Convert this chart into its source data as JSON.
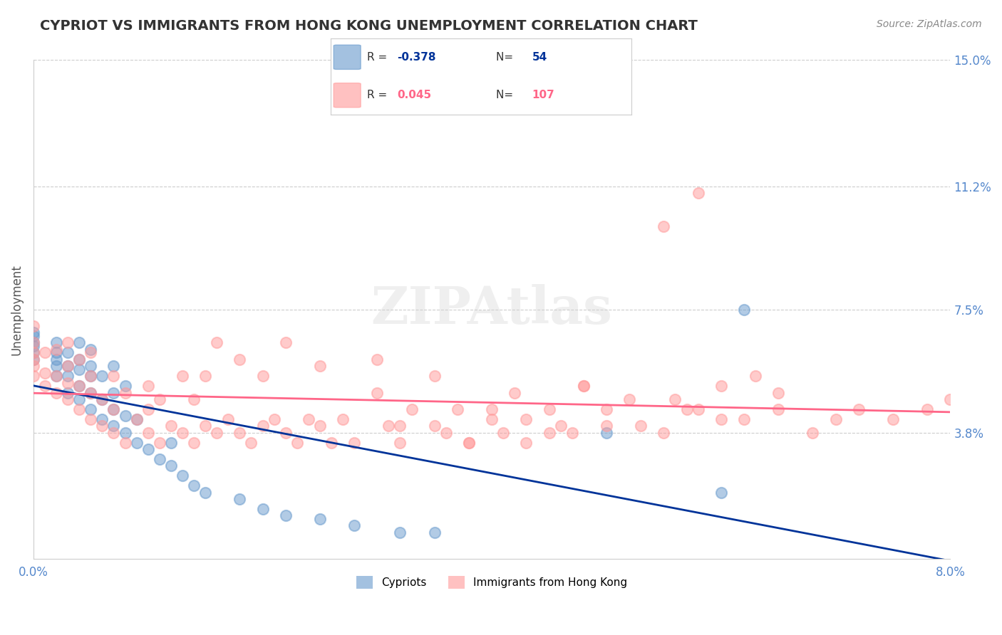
{
  "title": "CYPRIOT VS IMMIGRANTS FROM HONG KONG UNEMPLOYMENT CORRELATION CHART",
  "source_text": "Source: ZipAtlas.com",
  "xlabel": "",
  "ylabel": "Unemployment",
  "legend_label1": "Cypriots",
  "legend_label2": "Immigrants from Hong Kong",
  "R1": -0.378,
  "N1": 54,
  "R2": 0.045,
  "N2": 107,
  "color1": "#6699CC",
  "color2": "#FF9999",
  "trendline1_color": "#003399",
  "trendline2_color": "#FF6688",
  "xlim": [
    0.0,
    0.08
  ],
  "ylim": [
    0.0,
    0.15
  ],
  "xticks": [
    0.0,
    0.01,
    0.02,
    0.03,
    0.04,
    0.05,
    0.06,
    0.07,
    0.08
  ],
  "xtick_labels": [
    "0.0%",
    "",
    "",
    "",
    "",
    "",
    "",
    "",
    "8.0%"
  ],
  "ytick_positions": [
    0.038,
    0.075,
    0.112,
    0.15
  ],
  "ytick_labels": [
    "3.8%",
    "7.5%",
    "11.2%",
    "15.0%"
  ],
  "background_color": "#FFFFFF",
  "grid_color": "#CCCCCC",
  "title_color": "#333333",
  "axis_label_color": "#555555",
  "tick_label_color": "#5588CC",
  "watermark_text": "ZIPAtlas",
  "scatter1_x": [
    0.0,
    0.0,
    0.0,
    0.0,
    0.0,
    0.0,
    0.002,
    0.002,
    0.002,
    0.002,
    0.002,
    0.003,
    0.003,
    0.003,
    0.003,
    0.004,
    0.004,
    0.004,
    0.004,
    0.004,
    0.005,
    0.005,
    0.005,
    0.005,
    0.005,
    0.006,
    0.006,
    0.006,
    0.007,
    0.007,
    0.007,
    0.007,
    0.008,
    0.008,
    0.008,
    0.009,
    0.009,
    0.01,
    0.011,
    0.012,
    0.012,
    0.013,
    0.014,
    0.015,
    0.018,
    0.02,
    0.022,
    0.025,
    0.028,
    0.032,
    0.035,
    0.05,
    0.06,
    0.062
  ],
  "scatter1_y": [
    0.06,
    0.062,
    0.064,
    0.065,
    0.067,
    0.068,
    0.055,
    0.058,
    0.06,
    0.062,
    0.065,
    0.05,
    0.055,
    0.058,
    0.062,
    0.048,
    0.052,
    0.057,
    0.06,
    0.065,
    0.045,
    0.05,
    0.055,
    0.058,
    0.063,
    0.042,
    0.048,
    0.055,
    0.04,
    0.045,
    0.05,
    0.058,
    0.038,
    0.043,
    0.052,
    0.035,
    0.042,
    0.033,
    0.03,
    0.028,
    0.035,
    0.025,
    0.022,
    0.02,
    0.018,
    0.015,
    0.013,
    0.012,
    0.01,
    0.008,
    0.008,
    0.038,
    0.02,
    0.075
  ],
  "scatter2_x": [
    0.0,
    0.0,
    0.0,
    0.0,
    0.0,
    0.0,
    0.001,
    0.001,
    0.001,
    0.002,
    0.002,
    0.002,
    0.003,
    0.003,
    0.003,
    0.003,
    0.004,
    0.004,
    0.004,
    0.005,
    0.005,
    0.005,
    0.005,
    0.006,
    0.006,
    0.007,
    0.007,
    0.007,
    0.008,
    0.008,
    0.009,
    0.01,
    0.01,
    0.01,
    0.011,
    0.011,
    0.012,
    0.013,
    0.013,
    0.014,
    0.014,
    0.015,
    0.015,
    0.016,
    0.016,
    0.017,
    0.018,
    0.018,
    0.019,
    0.02,
    0.02,
    0.021,
    0.022,
    0.022,
    0.023,
    0.024,
    0.025,
    0.025,
    0.026,
    0.027,
    0.028,
    0.03,
    0.03,
    0.031,
    0.032,
    0.033,
    0.035,
    0.036,
    0.037,
    0.038,
    0.04,
    0.041,
    0.042,
    0.043,
    0.045,
    0.046,
    0.047,
    0.048,
    0.05,
    0.052,
    0.055,
    0.057,
    0.06,
    0.062,
    0.065,
    0.068,
    0.07,
    0.072,
    0.075,
    0.078,
    0.08,
    0.055,
    0.058,
    0.032,
    0.035,
    0.038,
    0.04,
    0.043,
    0.045,
    0.048,
    0.05,
    0.053,
    0.056,
    0.058,
    0.06,
    0.063,
    0.065
  ],
  "scatter2_y": [
    0.055,
    0.058,
    0.06,
    0.062,
    0.065,
    0.07,
    0.052,
    0.056,
    0.062,
    0.05,
    0.055,
    0.063,
    0.048,
    0.053,
    0.058,
    0.065,
    0.045,
    0.052,
    0.06,
    0.042,
    0.05,
    0.055,
    0.062,
    0.04,
    0.048,
    0.038,
    0.045,
    0.055,
    0.035,
    0.05,
    0.042,
    0.038,
    0.045,
    0.052,
    0.035,
    0.048,
    0.04,
    0.038,
    0.055,
    0.035,
    0.048,
    0.04,
    0.055,
    0.038,
    0.065,
    0.042,
    0.038,
    0.06,
    0.035,
    0.04,
    0.055,
    0.042,
    0.038,
    0.065,
    0.035,
    0.042,
    0.04,
    0.058,
    0.035,
    0.042,
    0.035,
    0.05,
    0.06,
    0.04,
    0.035,
    0.045,
    0.04,
    0.038,
    0.045,
    0.035,
    0.042,
    0.038,
    0.05,
    0.035,
    0.045,
    0.04,
    0.038,
    0.052,
    0.04,
    0.048,
    0.038,
    0.045,
    0.042,
    0.042,
    0.05,
    0.038,
    0.042,
    0.045,
    0.042,
    0.045,
    0.048,
    0.1,
    0.11,
    0.04,
    0.055,
    0.035,
    0.045,
    0.042,
    0.038,
    0.052,
    0.045,
    0.04,
    0.048,
    0.045,
    0.052,
    0.055,
    0.045
  ]
}
